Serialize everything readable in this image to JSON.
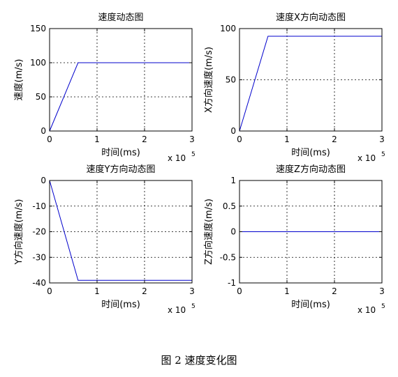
{
  "figure_caption": "图 2  速度变化图",
  "chart_data": [
    {
      "type": "line",
      "title": "速度动态图",
      "xlabel": "时间(ms)",
      "ylabel": "速度(m/s)",
      "x_exponent_label": "x 10",
      "x_exponent_power": "5",
      "xlim": [
        0,
        3
      ],
      "ylim": [
        0,
        150
      ],
      "xticks": [
        "0",
        "1",
        "2",
        "3"
      ],
      "yticks": [
        "0",
        "50",
        "100",
        "150"
      ],
      "grid": true,
      "series": [
        {
          "color": "#0000cc",
          "x": [
            0,
            0.6,
            3
          ],
          "y": [
            0,
            100,
            100
          ]
        }
      ]
    },
    {
      "type": "line",
      "title": "速度X方向动态图",
      "xlabel": "时间(ms)",
      "ylabel": "X方向速度(m/s)",
      "x_exponent_label": "x 10",
      "x_exponent_power": "5",
      "xlim": [
        0,
        3
      ],
      "ylim": [
        0,
        100
      ],
      "xticks": [
        "0",
        "1",
        "2",
        "3"
      ],
      "yticks": [
        "0",
        "50",
        "100"
      ],
      "grid": true,
      "series": [
        {
          "color": "#0000cc",
          "x": [
            0,
            0.6,
            3
          ],
          "y": [
            0,
            92.5,
            92.5
          ]
        }
      ]
    },
    {
      "type": "line",
      "title": "速度Y方向动态图",
      "xlabel": "时间(ms)",
      "ylabel": "Y方向速度(m/s)",
      "x_exponent_label": "x 10",
      "x_exponent_power": "5",
      "xlim": [
        0,
        3
      ],
      "ylim": [
        -40,
        0
      ],
      "xticks": [
        "0",
        "1",
        "2",
        "3"
      ],
      "yticks": [
        "-40",
        "-30",
        "-20",
        "-10",
        "0"
      ],
      "grid": true,
      "series": [
        {
          "color": "#0000cc",
          "x": [
            0,
            0.6,
            3
          ],
          "y": [
            0,
            -39,
            -39
          ]
        }
      ]
    },
    {
      "type": "line",
      "title": "速度Z方向动态图",
      "xlabel": "时间(ms)",
      "ylabel": "Z方向速度(m/s)",
      "x_exponent_label": "x 10",
      "x_exponent_power": "5",
      "xlim": [
        0,
        3
      ],
      "ylim": [
        -1,
        1
      ],
      "xticks": [
        "0",
        "1",
        "2",
        "3"
      ],
      "yticks": [
        "-1",
        "-0.5",
        "0",
        "0.5",
        "1"
      ],
      "grid": true,
      "series": [
        {
          "color": "#0000cc",
          "x": [
            0,
            3
          ],
          "y": [
            0,
            0
          ]
        }
      ]
    }
  ]
}
